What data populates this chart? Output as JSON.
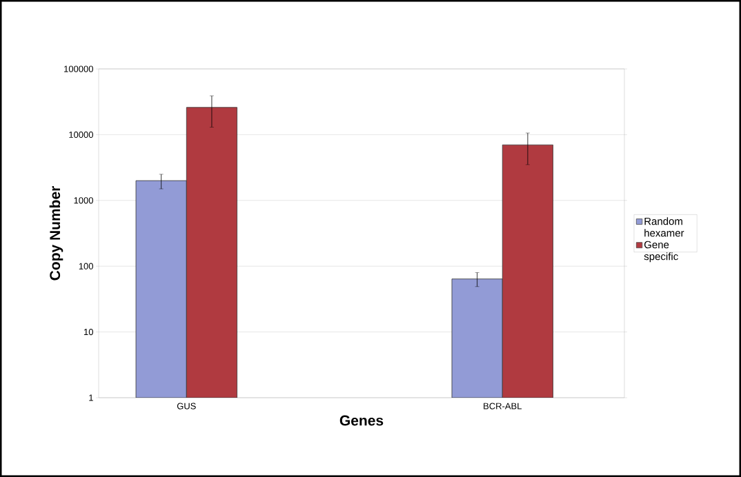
{
  "chart_data": {
    "type": "bar",
    "xlabel": "Genes",
    "ylabel": "Copy Number",
    "categories": [
      "GUS",
      "BCR-ABL"
    ],
    "series": [
      {
        "name": "Random hexamer",
        "color": "#929bd6",
        "values": [
          2000,
          64
        ],
        "errors": [
          [
            1500,
            2500
          ],
          [
            49,
            80
          ]
        ]
      },
      {
        "name": "Gene specific",
        "color": "#b03a40",
        "values": [
          26000,
          7000
        ],
        "errors": [
          [
            13000,
            39000
          ],
          [
            3500,
            10600
          ]
        ]
      }
    ],
    "log": "y",
    "ylim": [
      1,
      100000
    ],
    "yticks": [
      1,
      10,
      100,
      1000,
      10000,
      100000
    ],
    "grid": "y",
    "legend": "right"
  }
}
